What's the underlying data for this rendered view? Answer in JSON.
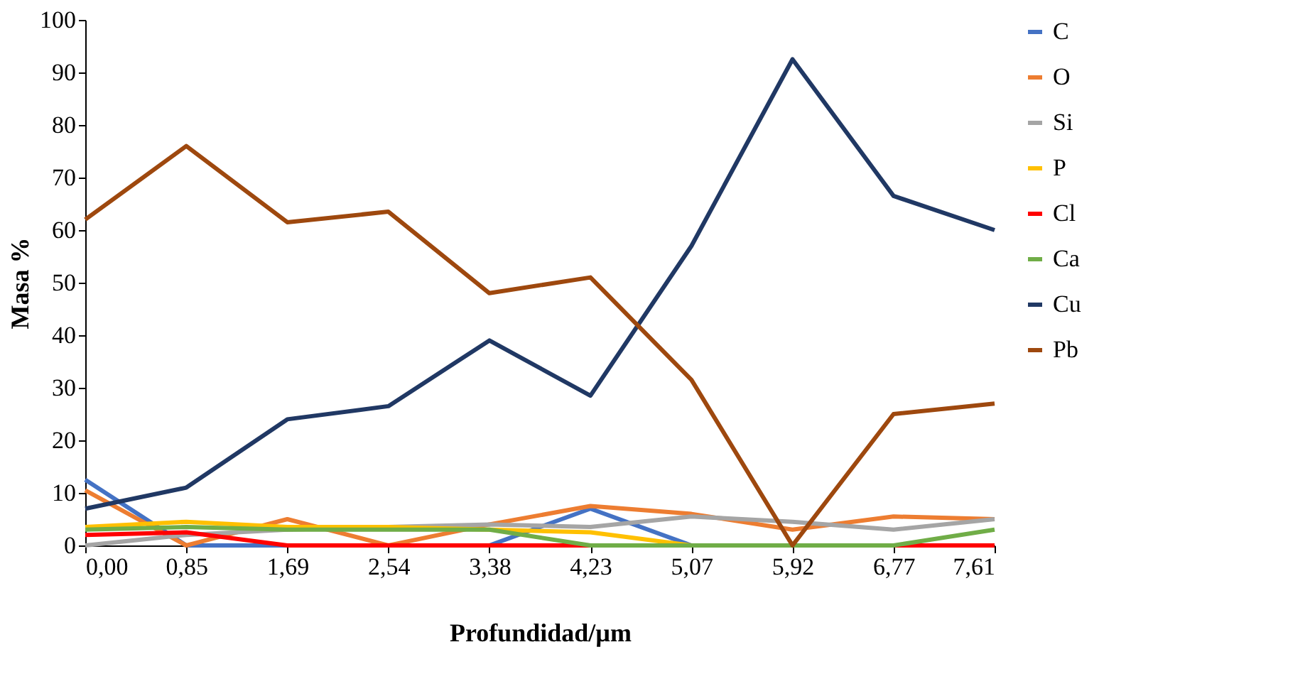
{
  "chart_data": {
    "type": "line",
    "xlabel": "Profundidad/µm",
    "ylabel": "Masa %",
    "categories": [
      "0,00",
      "0,85",
      "1,69",
      "2,54",
      "3,38",
      "4,23",
      "5,07",
      "5,92",
      "6,77",
      "7,61"
    ],
    "ylim": [
      0,
      100
    ],
    "yticks": [
      0,
      10,
      20,
      30,
      40,
      50,
      60,
      70,
      80,
      90,
      100
    ],
    "grid": false,
    "legend": "right",
    "marker": "none",
    "line_style": "solid",
    "series": [
      {
        "name": "C",
        "color": "#4472c4",
        "values": [
          12.5,
          0,
          0,
          0,
          0,
          7,
          0,
          0,
          null,
          null
        ]
      },
      {
        "name": "O",
        "color": "#ed7d31",
        "values": [
          10.5,
          0,
          5,
          0,
          4,
          7.5,
          6,
          3,
          5.5,
          5
        ]
      },
      {
        "name": "Si",
        "color": "#a5a5a5",
        "values": [
          0,
          2,
          3,
          3.5,
          4,
          3.5,
          5.5,
          4.5,
          3,
          5
        ]
      },
      {
        "name": "P",
        "color": "#ffc000",
        "values": [
          3.5,
          4.5,
          3.5,
          3.5,
          3,
          2.5,
          0,
          0,
          null,
          null
        ]
      },
      {
        "name": "Cl",
        "color": "#ff0000",
        "values": [
          2,
          2.5,
          0,
          0,
          0,
          0,
          0,
          0,
          0,
          0
        ]
      },
      {
        "name": "Ca",
        "color": "#70ad47",
        "values": [
          3,
          3.5,
          3,
          3,
          3,
          0,
          0,
          0,
          0,
          3
        ]
      },
      {
        "name": "Cu",
        "color": "#203864",
        "values": [
          7,
          11,
          24,
          26.5,
          39,
          28.5,
          57,
          92.5,
          66.5,
          60
        ]
      },
      {
        "name": "Pb",
        "color": "#9e480e",
        "values": [
          62,
          76,
          61.5,
          63.5,
          48,
          51,
          31.5,
          0,
          25,
          27
        ]
      }
    ]
  }
}
